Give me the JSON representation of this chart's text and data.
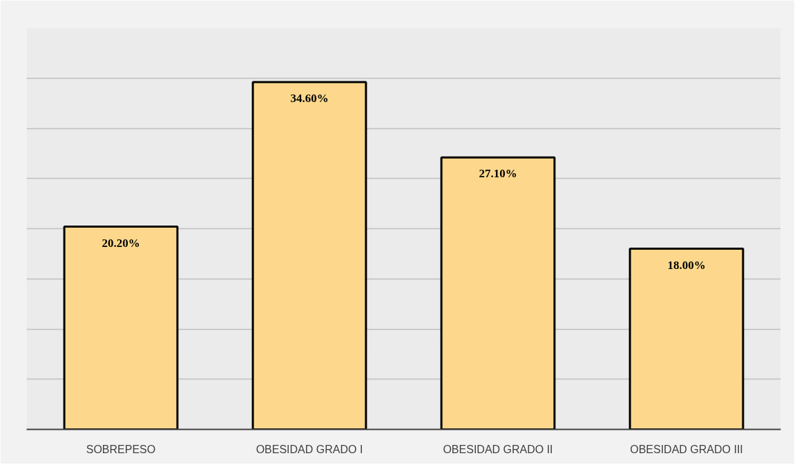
{
  "chart_data": {
    "type": "bar",
    "categories": [
      "SOBREPESO",
      "OBESIDAD GRADO I",
      "OBESIDAD GRADO II",
      "OBESIDAD GRADO III"
    ],
    "values": [
      20.2,
      34.6,
      27.1,
      18.0
    ],
    "value_labels": [
      "20.20%",
      "34.60%",
      "27.10%",
      "18.00%"
    ],
    "color": "#fdd88c",
    "ylim": [
      0,
      40
    ],
    "yticks": [
      {
        "value": 0,
        "label": null
      },
      {
        "value": 5,
        "label": null
      },
      {
        "value": 10,
        "label": null
      },
      {
        "value": 15,
        "label": null
      },
      {
        "value": 20,
        "label": null
      },
      {
        "value": 25,
        "label": null
      },
      {
        "value": 30,
        "label": null
      },
      {
        "value": 35,
        "label": null
      },
      {
        "value": 40,
        "label": null
      }
    ],
    "grid": "y",
    "tick_labels": "x"
  }
}
